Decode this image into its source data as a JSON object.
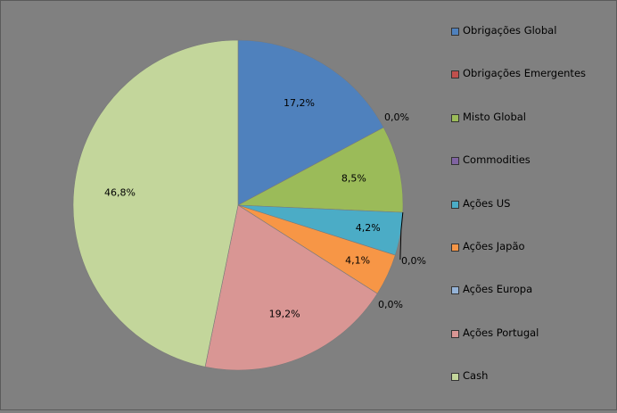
{
  "chart_data": {
    "type": "pie",
    "title": "",
    "categories": [
      "Obrigações Global",
      "Obrigações Emergentes",
      "Misto Global",
      "Commodities",
      "Ações US",
      "Ações Japão",
      "Ações Europa",
      "Ações Portugal",
      "Cash"
    ],
    "values": [
      17.2,
      0.0,
      8.5,
      0.0,
      4.2,
      4.1,
      0.0,
      19.2,
      46.8
    ],
    "labels": [
      "17,2%",
      "0,0%",
      "8,5%",
      "0,0%",
      "4,2%",
      "4,1%",
      "0,0%",
      "19,2%",
      "46,8%"
    ],
    "colors": [
      "#4F81BD",
      "#C0504D",
      "#9BBB59",
      "#8064A2",
      "#4BACC6",
      "#F79646",
      "#95B3D7",
      "#D99694",
      "#C3D69B"
    ],
    "legend_position": "right",
    "start_angle": "12 o'clock",
    "direction": "clockwise"
  }
}
